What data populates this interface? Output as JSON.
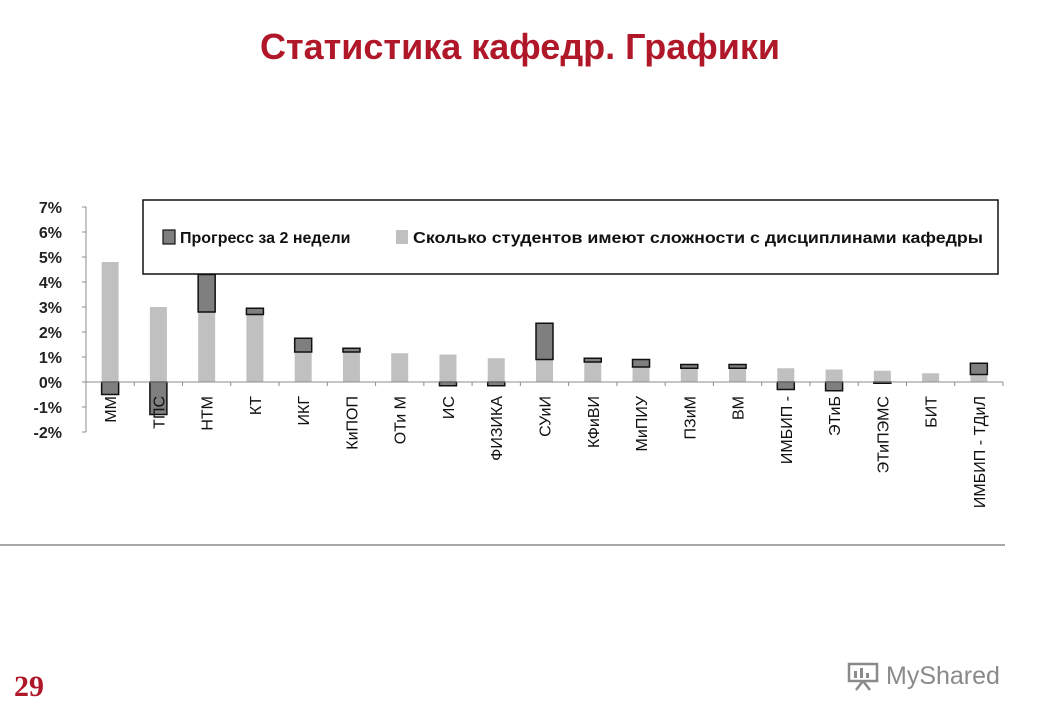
{
  "slide": {
    "title": "Статистика кафедр. Графики",
    "page_number": "29",
    "watermark": "MyShared"
  },
  "colors": {
    "title": "#b0182a",
    "progress_fill": "#7f7f7f",
    "difficulty_fill": "#c0c0c0"
  },
  "chart_data": {
    "type": "bar",
    "categories": [
      "ММ",
      "ТПС",
      "НТМ",
      "КТ",
      "ИКГ",
      "КиПОП",
      "ОТи М",
      "ИС",
      "ФИЗИКА",
      "СУиИ",
      "КФиВИ",
      "МиПИУ",
      "ПЗиМ",
      "ВМ",
      "ИМБИП -",
      "ЭТиБ",
      "ЭТиПЭМС",
      "БИТ",
      "ИМБИП - ТДиЛ"
    ],
    "series": [
      {
        "name": "Сколько студентов имеют сложности с дисциплинами кафедры",
        "values": [
          4.8,
          3.0,
          2.8,
          2.7,
          1.2,
          1.2,
          1.15,
          1.1,
          0.95,
          0.9,
          0.8,
          0.6,
          0.55,
          0.55,
          0.55,
          0.5,
          0.45,
          0.35,
          0.3
        ]
      },
      {
        "name": "Прогресс за 2 недели",
        "values": [
          -0.5,
          -1.3,
          1.5,
          0.25,
          0.55,
          0.15,
          0.0,
          -0.15,
          -0.15,
          1.45,
          0.15,
          0.3,
          0.15,
          0.15,
          -0.3,
          -0.35,
          -0.05,
          0.0,
          0.45
        ]
      }
    ],
    "y_ticks": [
      "7%",
      "6%",
      "5%",
      "4%",
      "3%",
      "2%",
      "1%",
      "0%",
      "-1%",
      "-2%"
    ],
    "ylim": [
      -2,
      7
    ],
    "legend_position": "top",
    "grid": false
  }
}
